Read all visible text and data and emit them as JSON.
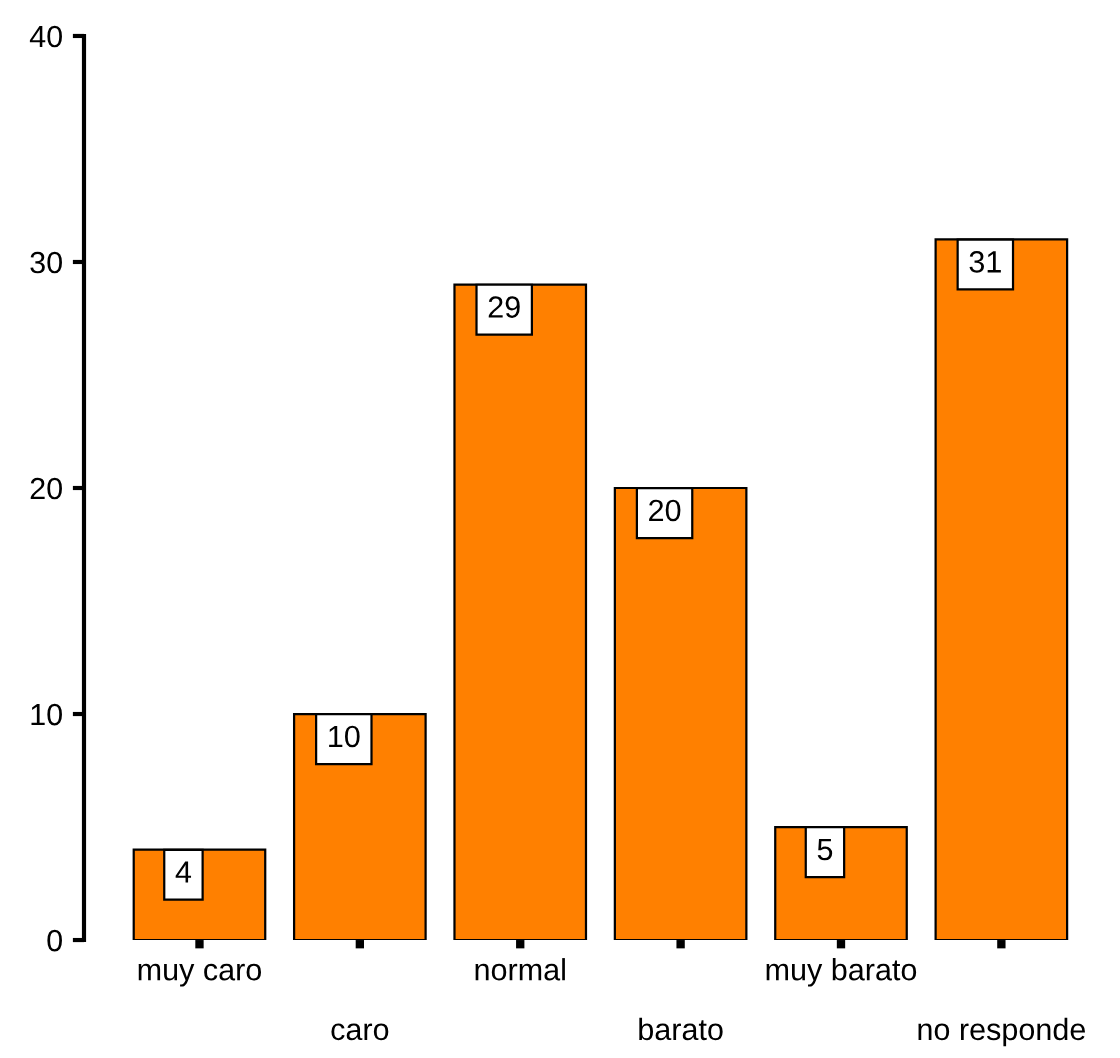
{
  "chart_data": {
    "type": "bar",
    "categories": [
      "muy caro",
      "caro",
      "normal",
      "barato",
      "muy barato",
      "no responde"
    ],
    "values": [
      4,
      10,
      29,
      20,
      5,
      31
    ],
    "color": "#ff8000",
    "ylim": [
      0,
      40
    ],
    "yticks": [
      0,
      10,
      20,
      30,
      40
    ],
    "data_labels": true,
    "grid": false,
    "legend": false
  }
}
